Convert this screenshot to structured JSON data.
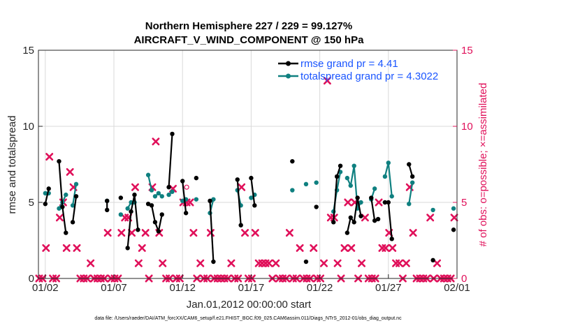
{
  "colors": {
    "rmse": "#000000",
    "spread": "#0f8080",
    "obs": "#e0105a",
    "legend_text": "#1a55ff",
    "grid": "#d9d9d9"
  },
  "chart_data": {
    "type": "line",
    "title_line1": "Northern Hemisphere 227 / 229 = 99.127%",
    "title_line2": "AIRCRAFT_V_WIND_COMPONENT @ 150 hPa",
    "xlabel": "Jan.01,2012 00:00:00 start",
    "ylabel": "rmse and totalspread",
    "y2label": "# of obs: o=possible; ×=assimilated",
    "xlim": [
      1.5,
      32
    ],
    "ylim": [
      0,
      15
    ],
    "y2lim": [
      0,
      15
    ],
    "xticks": [
      {
        "x": 2,
        "label": "01/02"
      },
      {
        "x": 7,
        "label": "01/07"
      },
      {
        "x": 12,
        "label": "01/12"
      },
      {
        "x": 17,
        "label": "01/17"
      },
      {
        "x": 22,
        "label": "01/22"
      },
      {
        "x": 27,
        "label": "01/27"
      },
      {
        "x": 32,
        "label": "02/01"
      }
    ],
    "yticks": [
      0,
      5,
      10,
      15
    ],
    "y2ticks": [
      0,
      5,
      10,
      15
    ],
    "legend": [
      {
        "label": "rmse grand pr = 4.41"
      },
      {
        "label": "totalspread grand pr = 4.3022"
      }
    ],
    "footer": "data file: /Users/raeder/DAI/ATM_forcXX/CAM6_setup/f.e21.FHIST_BGC.f09_025.CAM6assim.011/Diags_NTrS_2012-01/obs_diag_output.nc",
    "series": [
      {
        "name": "rmse",
        "segments": [
          [
            [
              2.0,
              4.9
            ],
            [
              2.25,
              5.9
            ]
          ],
          [
            [
              3.0,
              7.7
            ],
            [
              3.25,
              4.7
            ],
            [
              3.5,
              3.0
            ]
          ],
          [
            [
              4.0,
              3.7
            ],
            [
              4.25,
              5.4
            ]
          ],
          [
            [
              6.5,
              4.5
            ],
            [
              6.5,
              5.1
            ]
          ],
          [
            [
              7.5,
              5.3
            ]
          ],
          [
            [
              8.0,
              2.0
            ],
            [
              8.25,
              4.4
            ],
            [
              8.5,
              5.5
            ],
            [
              8.75,
              3.2
            ]
          ],
          [
            [
              9.5,
              4.9
            ],
            [
              9.75,
              4.8
            ],
            [
              10.0,
              3.7
            ],
            [
              10.25,
              3.1
            ],
            [
              10.5,
              4.2
            ]
          ],
          [
            [
              11.0,
              6.0
            ],
            [
              11.25,
              9.5
            ]
          ],
          [
            [
              12.0,
              6.4
            ],
            [
              12.25,
              4.3
            ]
          ],
          [
            [
              13.0,
              6.6
            ]
          ],
          [
            [
              14.0,
              5.1
            ],
            [
              14.25,
              1.1
            ]
          ],
          [
            [
              16.0,
              6.5
            ],
            [
              16.25,
              3.5
            ]
          ],
          [
            [
              17.0,
              6.6
            ],
            [
              17.25,
              4.8
            ]
          ],
          [
            [
              20.0,
              7.7
            ]
          ],
          [
            [
              21.0,
              1.1
            ]
          ],
          [
            [
              21.75,
              4.7
            ]
          ],
          [
            [
              23.0,
              3.7
            ],
            [
              23.25,
              6.7
            ],
            [
              23.5,
              7.4
            ]
          ],
          [
            [
              24.0,
              3.0
            ],
            [
              24.25,
              4.0
            ],
            [
              24.5,
              3.7
            ],
            [
              24.75,
              5.3
            ],
            [
              25.0,
              4.1
            ]
          ],
          [
            [
              25.75,
              5.3
            ],
            [
              26.0,
              3.8
            ],
            [
              26.25,
              3.9
            ]
          ],
          [
            [
              26.75,
              5.0
            ],
            [
              27.0,
              5.0
            ],
            [
              27.25,
              2.6
            ]
          ],
          [
            [
              28.5,
              7.5
            ],
            [
              28.75,
              6.7
            ]
          ],
          [
            [
              30.25,
              1.2
            ]
          ],
          [
            [
              31.75,
              3.2
            ]
          ]
        ]
      },
      {
        "name": "totalspread",
        "segments": [
          [
            [
              2.0,
              5.6
            ],
            [
              2.25,
              5.6
            ]
          ],
          [
            [
              3.0,
              4.6
            ],
            [
              3.25,
              5.0
            ],
            [
              3.5,
              5.5
            ]
          ],
          [
            [
              4.0,
              4.8
            ],
            [
              4.25,
              6.2
            ]
          ],
          [
            [
              6.5,
              5.1
            ]
          ],
          [
            [
              7.5,
              4.2
            ]
          ],
          [
            [
              8.0,
              4.6
            ],
            [
              8.25,
              5.0
            ],
            [
              8.5,
              5.0
            ]
          ],
          [
            [
              9.5,
              6.8
            ],
            [
              9.75,
              5.8
            ]
          ],
          [
            [
              10.0,
              5.4
            ],
            [
              10.25,
              5.6
            ],
            [
              10.5,
              5.4
            ]
          ],
          [
            [
              11.0,
              5.5
            ],
            [
              11.25,
              5.7
            ]
          ],
          [
            [
              12.0,
              5.1
            ],
            [
              12.25,
              5.2
            ]
          ],
          [
            [
              13.0,
              5.2
            ]
          ],
          [
            [
              14.0,
              4.3
            ],
            [
              14.25,
              5.2
            ]
          ],
          [
            [
              16.0,
              5.8
            ],
            [
              16.25,
              4.8
            ]
          ],
          [
            [
              17.0,
              5.3
            ],
            [
              17.25,
              5.5
            ]
          ],
          [
            [
              20.0,
              5.8
            ]
          ],
          [
            [
              21.0,
              6.2
            ]
          ],
          [
            [
              21.75,
              6.3
            ]
          ],
          [
            [
              23.0,
              4.4
            ],
            [
              23.25,
              5.8
            ],
            [
              23.5,
              7.0
            ]
          ],
          [
            [
              24.0,
              6.6
            ],
            [
              24.25,
              6.1
            ],
            [
              24.5,
              7.4
            ],
            [
              24.75,
              4.6
            ],
            [
              25.0,
              5.0
            ]
          ],
          [
            [
              25.75,
              5.2
            ],
            [
              26.0,
              5.9
            ]
          ],
          [
            [
              26.75,
              6.7
            ],
            [
              27.0,
              7.6
            ],
            [
              27.25,
              5.4
            ]
          ],
          [
            [
              28.5,
              4.9
            ],
            [
              28.75,
              6.3
            ]
          ],
          [
            [
              30.25,
              4.5
            ]
          ],
          [
            [
              31.75,
              4.6
            ]
          ]
        ]
      },
      {
        "name": "obs_assimilated",
        "points": [
          [
            1.55,
            0
          ],
          [
            1.8,
            0
          ],
          [
            2.05,
            2
          ],
          [
            2.3,
            8
          ],
          [
            2.55,
            0
          ],
          [
            2.8,
            0
          ],
          [
            3.05,
            4
          ],
          [
            3.3,
            5
          ],
          [
            3.55,
            2
          ],
          [
            3.8,
            7
          ],
          [
            4.05,
            6
          ],
          [
            4.3,
            2
          ],
          [
            4.55,
            0
          ],
          [
            4.8,
            0
          ],
          [
            5.05,
            0
          ],
          [
            5.3,
            1
          ],
          [
            5.55,
            0
          ],
          [
            5.8,
            0
          ],
          [
            6.05,
            0
          ],
          [
            6.3,
            0
          ],
          [
            6.55,
            3
          ],
          [
            6.8,
            0
          ],
          [
            7.05,
            0
          ],
          [
            7.3,
            0
          ],
          [
            7.55,
            3
          ],
          [
            7.8,
            4
          ],
          [
            8.05,
            4
          ],
          [
            8.3,
            3
          ],
          [
            8.55,
            6
          ],
          [
            8.8,
            1
          ],
          [
            9.05,
            2
          ],
          [
            9.3,
            3
          ],
          [
            9.55,
            0
          ],
          [
            9.8,
            6
          ],
          [
            10.05,
            9
          ],
          [
            10.3,
            3
          ],
          [
            10.55,
            1
          ],
          [
            10.8,
            0
          ],
          [
            11.05,
            0
          ],
          [
            11.3,
            5.9
          ],
          [
            11.55,
            0
          ],
          [
            11.8,
            0
          ],
          [
            12.05,
            5
          ],
          [
            12.3,
            5
          ],
          [
            12.55,
            5
          ],
          [
            12.8,
            3
          ],
          [
            13.05,
            0
          ],
          [
            13.3,
            1
          ],
          [
            13.55,
            0
          ],
          [
            13.8,
            0
          ],
          [
            14.05,
            3
          ],
          [
            14.3,
            0
          ],
          [
            14.55,
            0
          ],
          [
            14.8,
            0
          ],
          [
            15.05,
            0
          ],
          [
            15.3,
            0
          ],
          [
            15.55,
            1
          ],
          [
            15.8,
            0
          ],
          [
            16.05,
            0
          ],
          [
            16.3,
            6
          ],
          [
            16.55,
            3
          ],
          [
            16.8,
            0
          ],
          [
            17.05,
            0
          ],
          [
            17.3,
            3
          ],
          [
            17.55,
            1
          ],
          [
            17.8,
            1
          ],
          [
            18.05,
            1
          ],
          [
            18.3,
            1
          ],
          [
            18.55,
            0
          ],
          [
            18.8,
            1
          ],
          [
            19.05,
            0
          ],
          [
            19.3,
            0
          ],
          [
            19.55,
            0
          ],
          [
            19.8,
            3
          ],
          [
            20.05,
            0
          ],
          [
            20.3,
            0
          ],
          [
            20.55,
            2
          ],
          [
            20.8,
            0
          ],
          [
            21.05,
            0
          ],
          [
            21.3,
            0
          ],
          [
            21.55,
            2
          ],
          [
            21.8,
            0
          ],
          [
            22.05,
            0
          ],
          [
            22.3,
            1
          ],
          [
            22.55,
            13
          ],
          [
            22.8,
            4
          ],
          [
            23.05,
            4
          ],
          [
            23.3,
            1
          ],
          [
            23.55,
            0
          ],
          [
            23.8,
            2
          ],
          [
            24.05,
            5
          ],
          [
            24.3,
            2
          ],
          [
            24.55,
            5
          ],
          [
            24.8,
            0
          ],
          [
            25.05,
            1
          ],
          [
            25.3,
            4
          ],
          [
            25.55,
            0
          ],
          [
            25.8,
            0
          ],
          [
            26.05,
            0
          ],
          [
            26.3,
            5
          ],
          [
            26.55,
            2
          ],
          [
            26.8,
            2
          ],
          [
            27.05,
            3
          ],
          [
            27.3,
            2
          ],
          [
            27.55,
            1
          ],
          [
            27.8,
            1
          ],
          [
            28.05,
            0
          ],
          [
            28.3,
            1
          ],
          [
            28.55,
            6
          ],
          [
            28.8,
            3
          ],
          [
            29.05,
            0
          ],
          [
            29.3,
            0
          ],
          [
            29.55,
            0
          ],
          [
            29.8,
            0
          ],
          [
            30.05,
            4
          ],
          [
            30.3,
            0
          ],
          [
            30.55,
            1
          ],
          [
            30.8,
            0
          ],
          [
            31.05,
            0
          ],
          [
            31.3,
            0
          ],
          [
            31.55,
            0
          ],
          [
            31.8,
            4
          ]
        ]
      },
      {
        "name": "obs_possible",
        "points": [
          [
            12.3,
            6
          ]
        ]
      }
    ]
  }
}
